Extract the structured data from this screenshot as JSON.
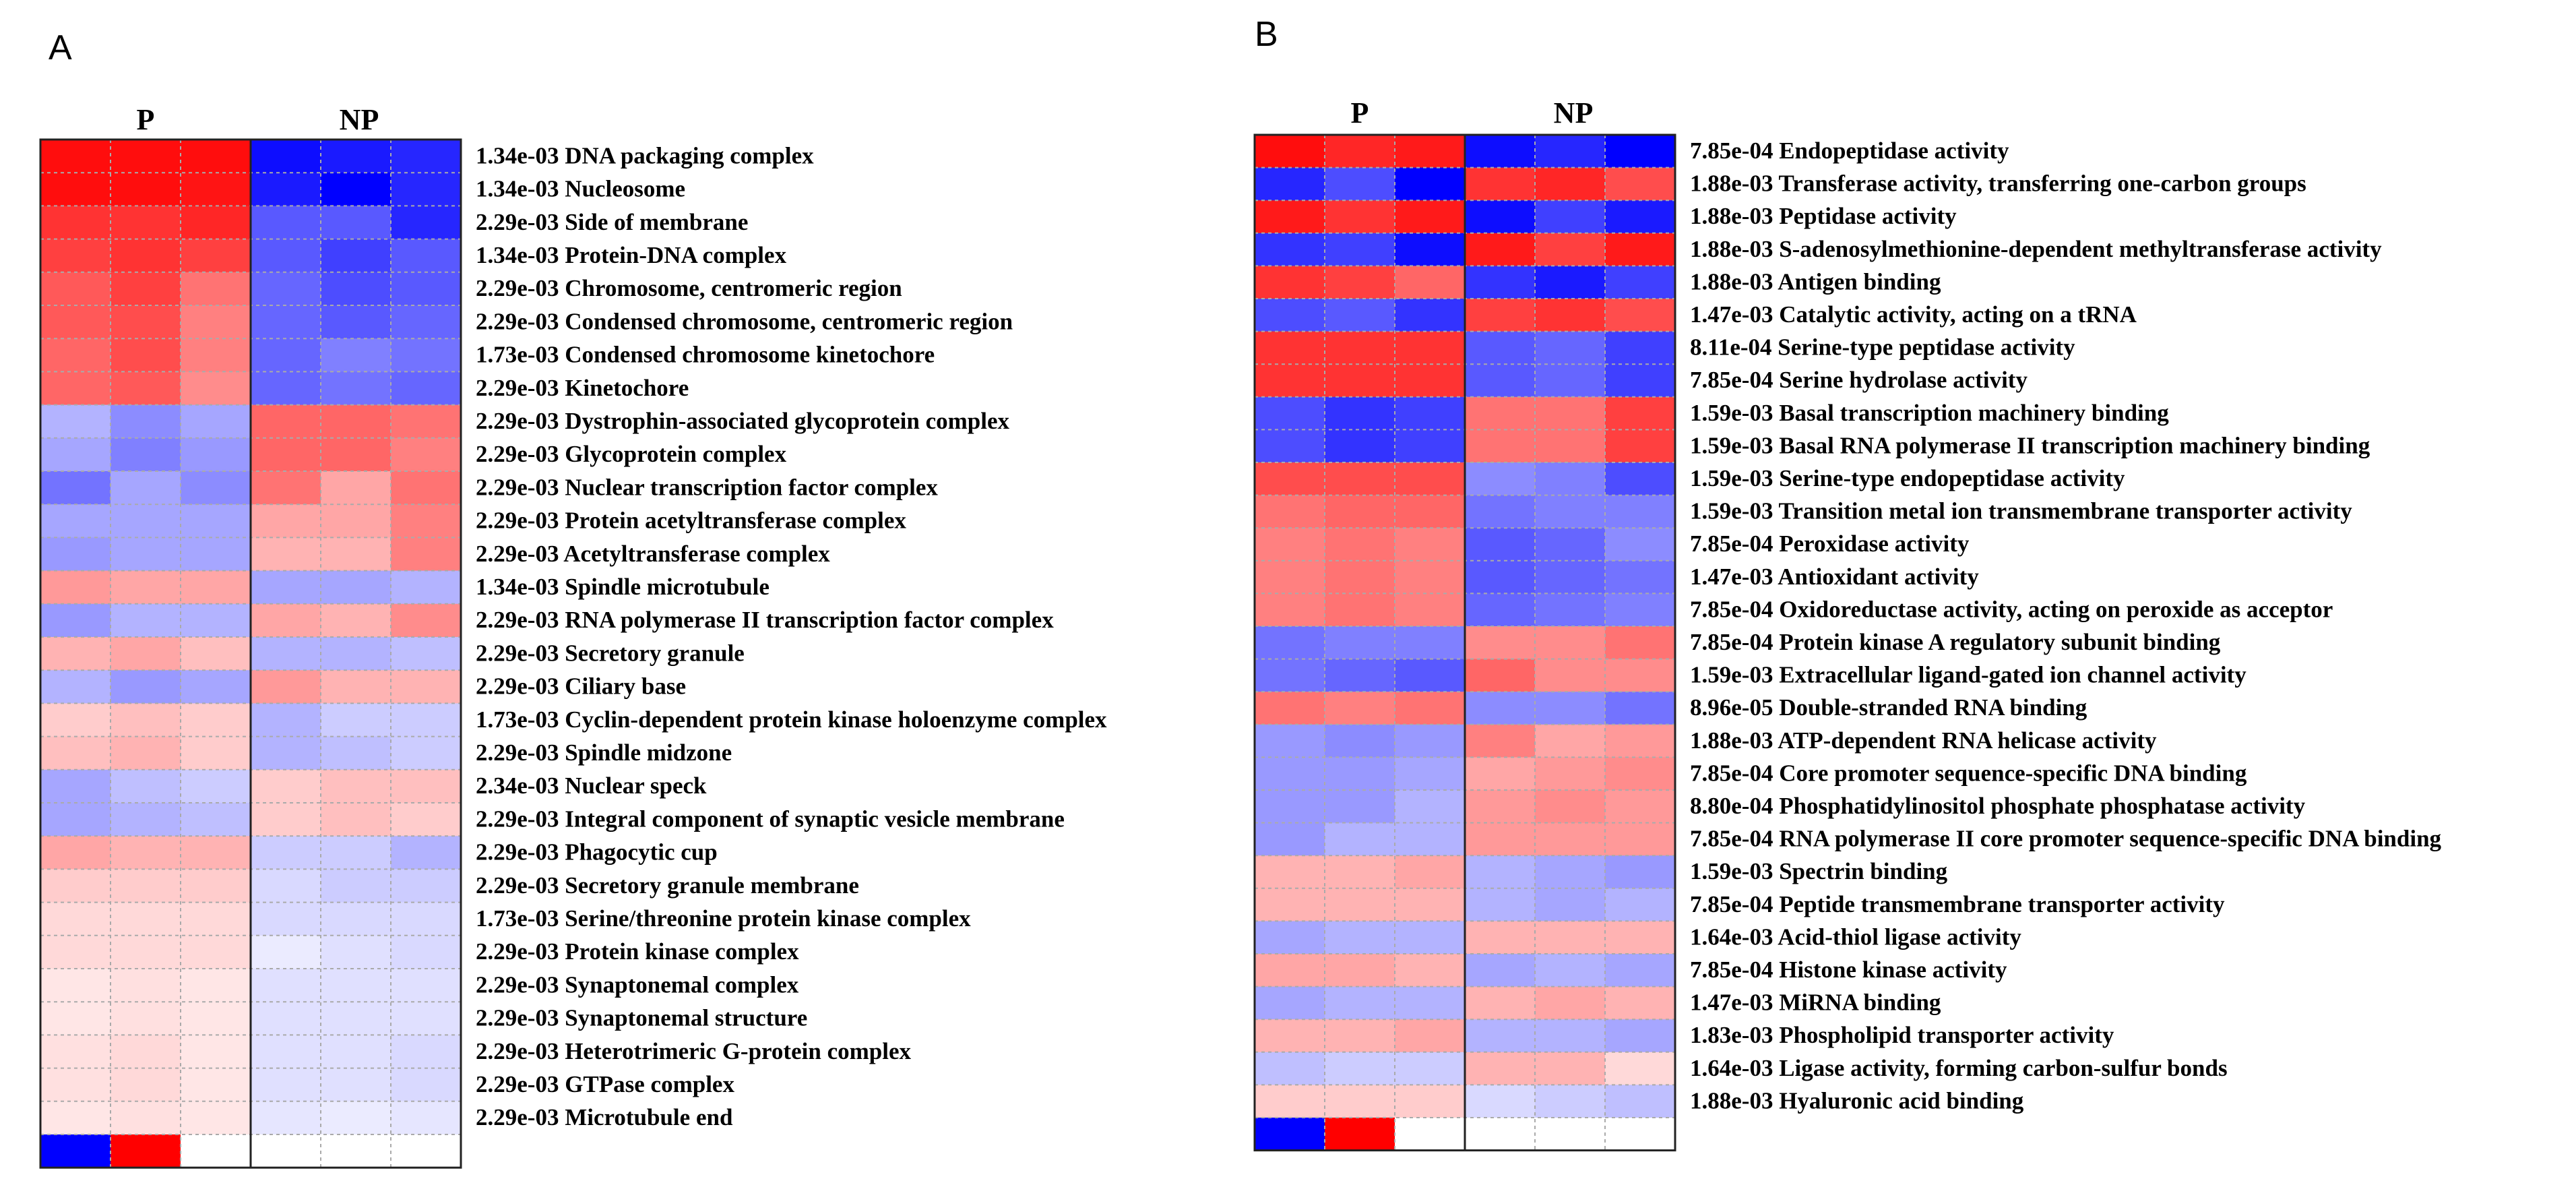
{
  "chart_data": [
    {
      "type": "heatmap",
      "panel": "A",
      "group_labels": [
        "P",
        "NP"
      ],
      "color_scale": {
        "low": "#0000ff",
        "mid": "#ffffff",
        "high": "#ff0000",
        "min": -1,
        "max": 1
      },
      "legend_values": [
        -1,
        1,
        0
      ],
      "rows": [
        {
          "pvalue": "1.34e-03",
          "term": "DNA packaging complex",
          "values": [
            0.95,
            0.95,
            0.95,
            -0.95,
            -0.9,
            -0.85
          ]
        },
        {
          "pvalue": "1.34e-03",
          "term": "Nucleosome",
          "values": [
            0.95,
            0.95,
            0.92,
            -0.9,
            -1.0,
            -0.85
          ]
        },
        {
          "pvalue": "2.29e-03",
          "term": "Side of membrane",
          "values": [
            0.8,
            0.8,
            0.85,
            -0.65,
            -0.65,
            -0.85
          ]
        },
        {
          "pvalue": "1.34e-03",
          "term": "Protein-DNA complex",
          "values": [
            0.75,
            0.8,
            0.75,
            -0.65,
            -0.75,
            -0.65
          ]
        },
        {
          "pvalue": "2.29e-03",
          "term": "Chromosome, centromeric region",
          "values": [
            0.65,
            0.75,
            0.55,
            -0.6,
            -0.7,
            -0.65
          ]
        },
        {
          "pvalue": "2.29e-03",
          "term": "Condensed chromosome, centromeric region",
          "values": [
            0.65,
            0.7,
            0.5,
            -0.6,
            -0.65,
            -0.6
          ]
        },
        {
          "pvalue": "1.73e-03",
          "term": "Condensed chromosome kinetochore",
          "values": [
            0.6,
            0.7,
            0.5,
            -0.6,
            -0.5,
            -0.55
          ]
        },
        {
          "pvalue": "2.29e-03",
          "term": "Kinetochore",
          "values": [
            0.6,
            0.65,
            0.45,
            -0.6,
            -0.55,
            -0.6
          ]
        },
        {
          "pvalue": "2.29e-03",
          "term": "Dystrophin-associated glycoprotein complex",
          "values": [
            -0.3,
            -0.45,
            -0.35,
            0.6,
            0.6,
            0.55
          ]
        },
        {
          "pvalue": "2.29e-03",
          "term": "Glycoprotein complex",
          "values": [
            -0.35,
            -0.5,
            -0.4,
            0.6,
            0.6,
            0.5
          ]
        },
        {
          "pvalue": "2.29e-03",
          "term": "Nuclear transcription factor complex",
          "values": [
            -0.55,
            -0.35,
            -0.45,
            0.55,
            0.35,
            0.55
          ]
        },
        {
          "pvalue": "2.29e-03",
          "term": "Protein acetyltransferase complex",
          "values": [
            -0.35,
            -0.35,
            -0.35,
            0.35,
            0.35,
            0.5
          ]
        },
        {
          "pvalue": "2.29e-03",
          "term": "Acetyltransferase complex",
          "values": [
            -0.4,
            -0.35,
            -0.35,
            0.3,
            0.3,
            0.5
          ]
        },
        {
          "pvalue": "1.34e-03",
          "term": "Spindle microtubule",
          "values": [
            0.4,
            0.35,
            0.35,
            -0.35,
            -0.35,
            -0.3
          ]
        },
        {
          "pvalue": "2.29e-03",
          "term": "RNA polymerase II transcription factor complex",
          "values": [
            -0.4,
            -0.3,
            -0.3,
            0.35,
            0.3,
            0.45
          ]
        },
        {
          "pvalue": "2.29e-03",
          "term": "Secretory granule",
          "values": [
            0.3,
            0.35,
            0.25,
            -0.3,
            -0.3,
            -0.25
          ]
        },
        {
          "pvalue": "2.29e-03",
          "term": "Ciliary base",
          "values": [
            -0.3,
            -0.4,
            -0.35,
            0.4,
            0.3,
            0.3
          ]
        },
        {
          "pvalue": "1.73e-03",
          "term": "Cyclin-dependent protein kinase holoenzyme complex",
          "values": [
            0.2,
            0.25,
            0.2,
            -0.3,
            -0.2,
            -0.2
          ]
        },
        {
          "pvalue": "2.29e-03",
          "term": "Spindle midzone",
          "values": [
            0.25,
            0.3,
            0.2,
            -0.3,
            -0.25,
            -0.2
          ]
        },
        {
          "pvalue": "2.34e-03",
          "term": "Nuclear speck",
          "values": [
            -0.35,
            -0.25,
            -0.2,
            0.2,
            0.25,
            0.25
          ]
        },
        {
          "pvalue": "2.29e-03",
          "term": "Integral component of synaptic vesicle membrane",
          "values": [
            -0.35,
            -0.3,
            -0.25,
            0.2,
            0.25,
            0.2
          ]
        },
        {
          "pvalue": "2.29e-03",
          "term": "Phagocytic cup",
          "values": [
            0.35,
            0.3,
            0.3,
            -0.2,
            -0.2,
            -0.3
          ]
        },
        {
          "pvalue": "2.29e-03",
          "term": "Secretory granule membrane",
          "values": [
            0.2,
            0.2,
            0.2,
            -0.15,
            -0.2,
            -0.2
          ]
        },
        {
          "pvalue": "1.73e-03",
          "term": "Serine/threonine protein kinase complex",
          "values": [
            0.15,
            0.15,
            0.15,
            -0.15,
            -0.15,
            -0.15
          ]
        },
        {
          "pvalue": "2.29e-03",
          "term": "Protein kinase complex",
          "values": [
            0.15,
            0.15,
            0.15,
            -0.08,
            -0.12,
            -0.15
          ]
        },
        {
          "pvalue": "2.29e-03",
          "term": "Synaptonemal complex",
          "values": [
            0.1,
            0.12,
            0.1,
            -0.12,
            -0.12,
            -0.12
          ]
        },
        {
          "pvalue": "2.29e-03",
          "term": "Synaptonemal structure",
          "values": [
            0.1,
            0.12,
            0.1,
            -0.12,
            -0.12,
            -0.12
          ]
        },
        {
          "pvalue": "2.29e-03",
          "term": "Heterotrimeric G-protein complex",
          "values": [
            0.12,
            0.15,
            0.1,
            -0.12,
            -0.12,
            -0.15
          ]
        },
        {
          "pvalue": "2.29e-03",
          "term": "GTPase complex",
          "values": [
            0.12,
            0.15,
            0.1,
            -0.12,
            -0.12,
            -0.15
          ]
        },
        {
          "pvalue": "2.29e-03",
          "term": "Microtubule end",
          "values": [
            0.1,
            0.12,
            0.1,
            -0.1,
            -0.08,
            -0.1
          ]
        }
      ]
    },
    {
      "type": "heatmap",
      "panel": "B",
      "group_labels": [
        "P",
        "NP"
      ],
      "color_scale": {
        "low": "#0000ff",
        "mid": "#ffffff",
        "high": "#ff0000",
        "min": -1,
        "max": 1
      },
      "legend_values": [
        -1,
        1,
        0
      ],
      "rows": [
        {
          "pvalue": "7.85e-04",
          "term": "Endopeptidase activity",
          "values": [
            0.95,
            0.85,
            0.9,
            -0.95,
            -0.85,
            -1.0
          ]
        },
        {
          "pvalue": "1.88e-03",
          "term": "Transferase activity, transferring one-carbon groups",
          "values": [
            -0.85,
            -0.7,
            -1.0,
            0.8,
            0.85,
            0.7
          ]
        },
        {
          "pvalue": "1.88e-03",
          "term": "Peptidase activity",
          "values": [
            0.9,
            0.8,
            0.9,
            -0.95,
            -0.75,
            -0.9
          ]
        },
        {
          "pvalue": "1.88e-03",
          "term": "S-adenosylmethionine-dependent methyltransferase activity",
          "values": [
            -0.8,
            -0.75,
            -0.95,
            0.9,
            0.75,
            0.9
          ]
        },
        {
          "pvalue": "1.88e-03",
          "term": "Antigen binding",
          "values": [
            0.8,
            0.75,
            0.6,
            -0.8,
            -0.9,
            -0.75
          ]
        },
        {
          "pvalue": "1.47e-03",
          "term": "Catalytic activity, acting on a tRNA",
          "values": [
            -0.7,
            -0.65,
            -0.8,
            0.75,
            0.8,
            0.7
          ]
        },
        {
          "pvalue": "8.11e-04",
          "term": "Serine-type peptidase activity",
          "values": [
            0.8,
            0.8,
            0.8,
            -0.65,
            -0.6,
            -0.75
          ]
        },
        {
          "pvalue": "7.85e-04",
          "term": "Serine hydrolase activity",
          "values": [
            0.8,
            0.8,
            0.8,
            -0.65,
            -0.6,
            -0.75
          ]
        },
        {
          "pvalue": "1.59e-03",
          "term": "Basal transcription machinery binding",
          "values": [
            -0.7,
            -0.8,
            -0.75,
            0.55,
            0.55,
            0.75
          ]
        },
        {
          "pvalue": "1.59e-03",
          "term": "Basal RNA polymerase II transcription machinery binding",
          "values": [
            -0.7,
            -0.8,
            -0.75,
            0.55,
            0.55,
            0.75
          ]
        },
        {
          "pvalue": "1.59e-03",
          "term": "Serine-type endopeptidase activity",
          "values": [
            0.7,
            0.7,
            0.7,
            -0.45,
            -0.5,
            -0.7
          ]
        },
        {
          "pvalue": "1.59e-03",
          "term": "Transition metal ion transmembrane transporter activity",
          "values": [
            0.55,
            0.6,
            0.6,
            -0.55,
            -0.5,
            -0.5
          ]
        },
        {
          "pvalue": "7.85e-04",
          "term": "Peroxidase activity",
          "values": [
            0.5,
            0.55,
            0.5,
            -0.65,
            -0.6,
            -0.45
          ]
        },
        {
          "pvalue": "1.47e-03",
          "term": "Antioxidant activity",
          "values": [
            0.5,
            0.55,
            0.5,
            -0.65,
            -0.6,
            -0.55
          ]
        },
        {
          "pvalue": "7.85e-04",
          "term": "Oxidoreductase activity, acting on peroxide as acceptor",
          "values": [
            0.5,
            0.55,
            0.5,
            -0.6,
            -0.55,
            -0.5
          ]
        },
        {
          "pvalue": "7.85e-04",
          "term": "Protein kinase A regulatory subunit binding",
          "values": [
            -0.55,
            -0.5,
            -0.5,
            0.45,
            0.45,
            0.55
          ]
        },
        {
          "pvalue": "1.59e-03",
          "term": "Extracellular ligand-gated ion channel activity",
          "values": [
            -0.55,
            -0.6,
            -0.65,
            0.6,
            0.45,
            0.45
          ]
        },
        {
          "pvalue": "8.96e-05",
          "term": "Double-stranded RNA binding",
          "values": [
            0.55,
            0.5,
            0.55,
            -0.45,
            -0.45,
            -0.55
          ]
        },
        {
          "pvalue": "1.88e-03",
          "term": "ATP-dependent RNA helicase activity",
          "values": [
            -0.4,
            -0.45,
            -0.4,
            0.5,
            0.35,
            0.4
          ]
        },
        {
          "pvalue": "7.85e-04",
          "term": "Core promoter sequence-specific DNA binding",
          "values": [
            -0.4,
            -0.4,
            -0.35,
            0.35,
            0.4,
            0.45
          ]
        },
        {
          "pvalue": "8.80e-04",
          "term": "Phosphatidylinositol phosphate phosphatase activity",
          "values": [
            -0.4,
            -0.4,
            -0.3,
            0.4,
            0.45,
            0.4
          ]
        },
        {
          "pvalue": "7.85e-04",
          "term": "RNA polymerase II core promoter sequence-specific DNA binding",
          "values": [
            -0.4,
            -0.3,
            -0.3,
            0.4,
            0.4,
            0.4
          ]
        },
        {
          "pvalue": "1.59e-03",
          "term": "Spectrin binding",
          "values": [
            0.3,
            0.3,
            0.35,
            -0.3,
            -0.35,
            -0.4
          ]
        },
        {
          "pvalue": "7.85e-04",
          "term": "Peptide transmembrane transporter activity",
          "values": [
            0.3,
            0.3,
            0.3,
            -0.3,
            -0.35,
            -0.3
          ]
        },
        {
          "pvalue": "1.64e-03",
          "term": "Acid-thiol ligase activity",
          "values": [
            -0.35,
            -0.3,
            -0.3,
            0.3,
            0.3,
            0.3
          ]
        },
        {
          "pvalue": "7.85e-04",
          "term": "Histone kinase activity",
          "values": [
            0.35,
            0.35,
            0.3,
            -0.35,
            -0.3,
            -0.35
          ]
        },
        {
          "pvalue": "1.47e-03",
          "term": "MiRNA binding",
          "values": [
            -0.35,
            -0.3,
            -0.3,
            0.3,
            0.35,
            0.3
          ]
        },
        {
          "pvalue": "1.83e-03",
          "term": "Phospholipid transporter activity",
          "values": [
            0.3,
            0.3,
            0.35,
            -0.3,
            -0.3,
            -0.35
          ]
        },
        {
          "pvalue": "1.64e-03",
          "term": "Ligase activity, forming carbon-sulfur bonds",
          "values": [
            -0.25,
            -0.2,
            -0.2,
            0.3,
            0.3,
            0.15
          ]
        },
        {
          "pvalue": "1.88e-03",
          "term": "Hyaluronic acid binding",
          "values": [
            0.2,
            0.2,
            0.2,
            -0.15,
            -0.2,
            -0.25
          ]
        }
      ]
    }
  ]
}
